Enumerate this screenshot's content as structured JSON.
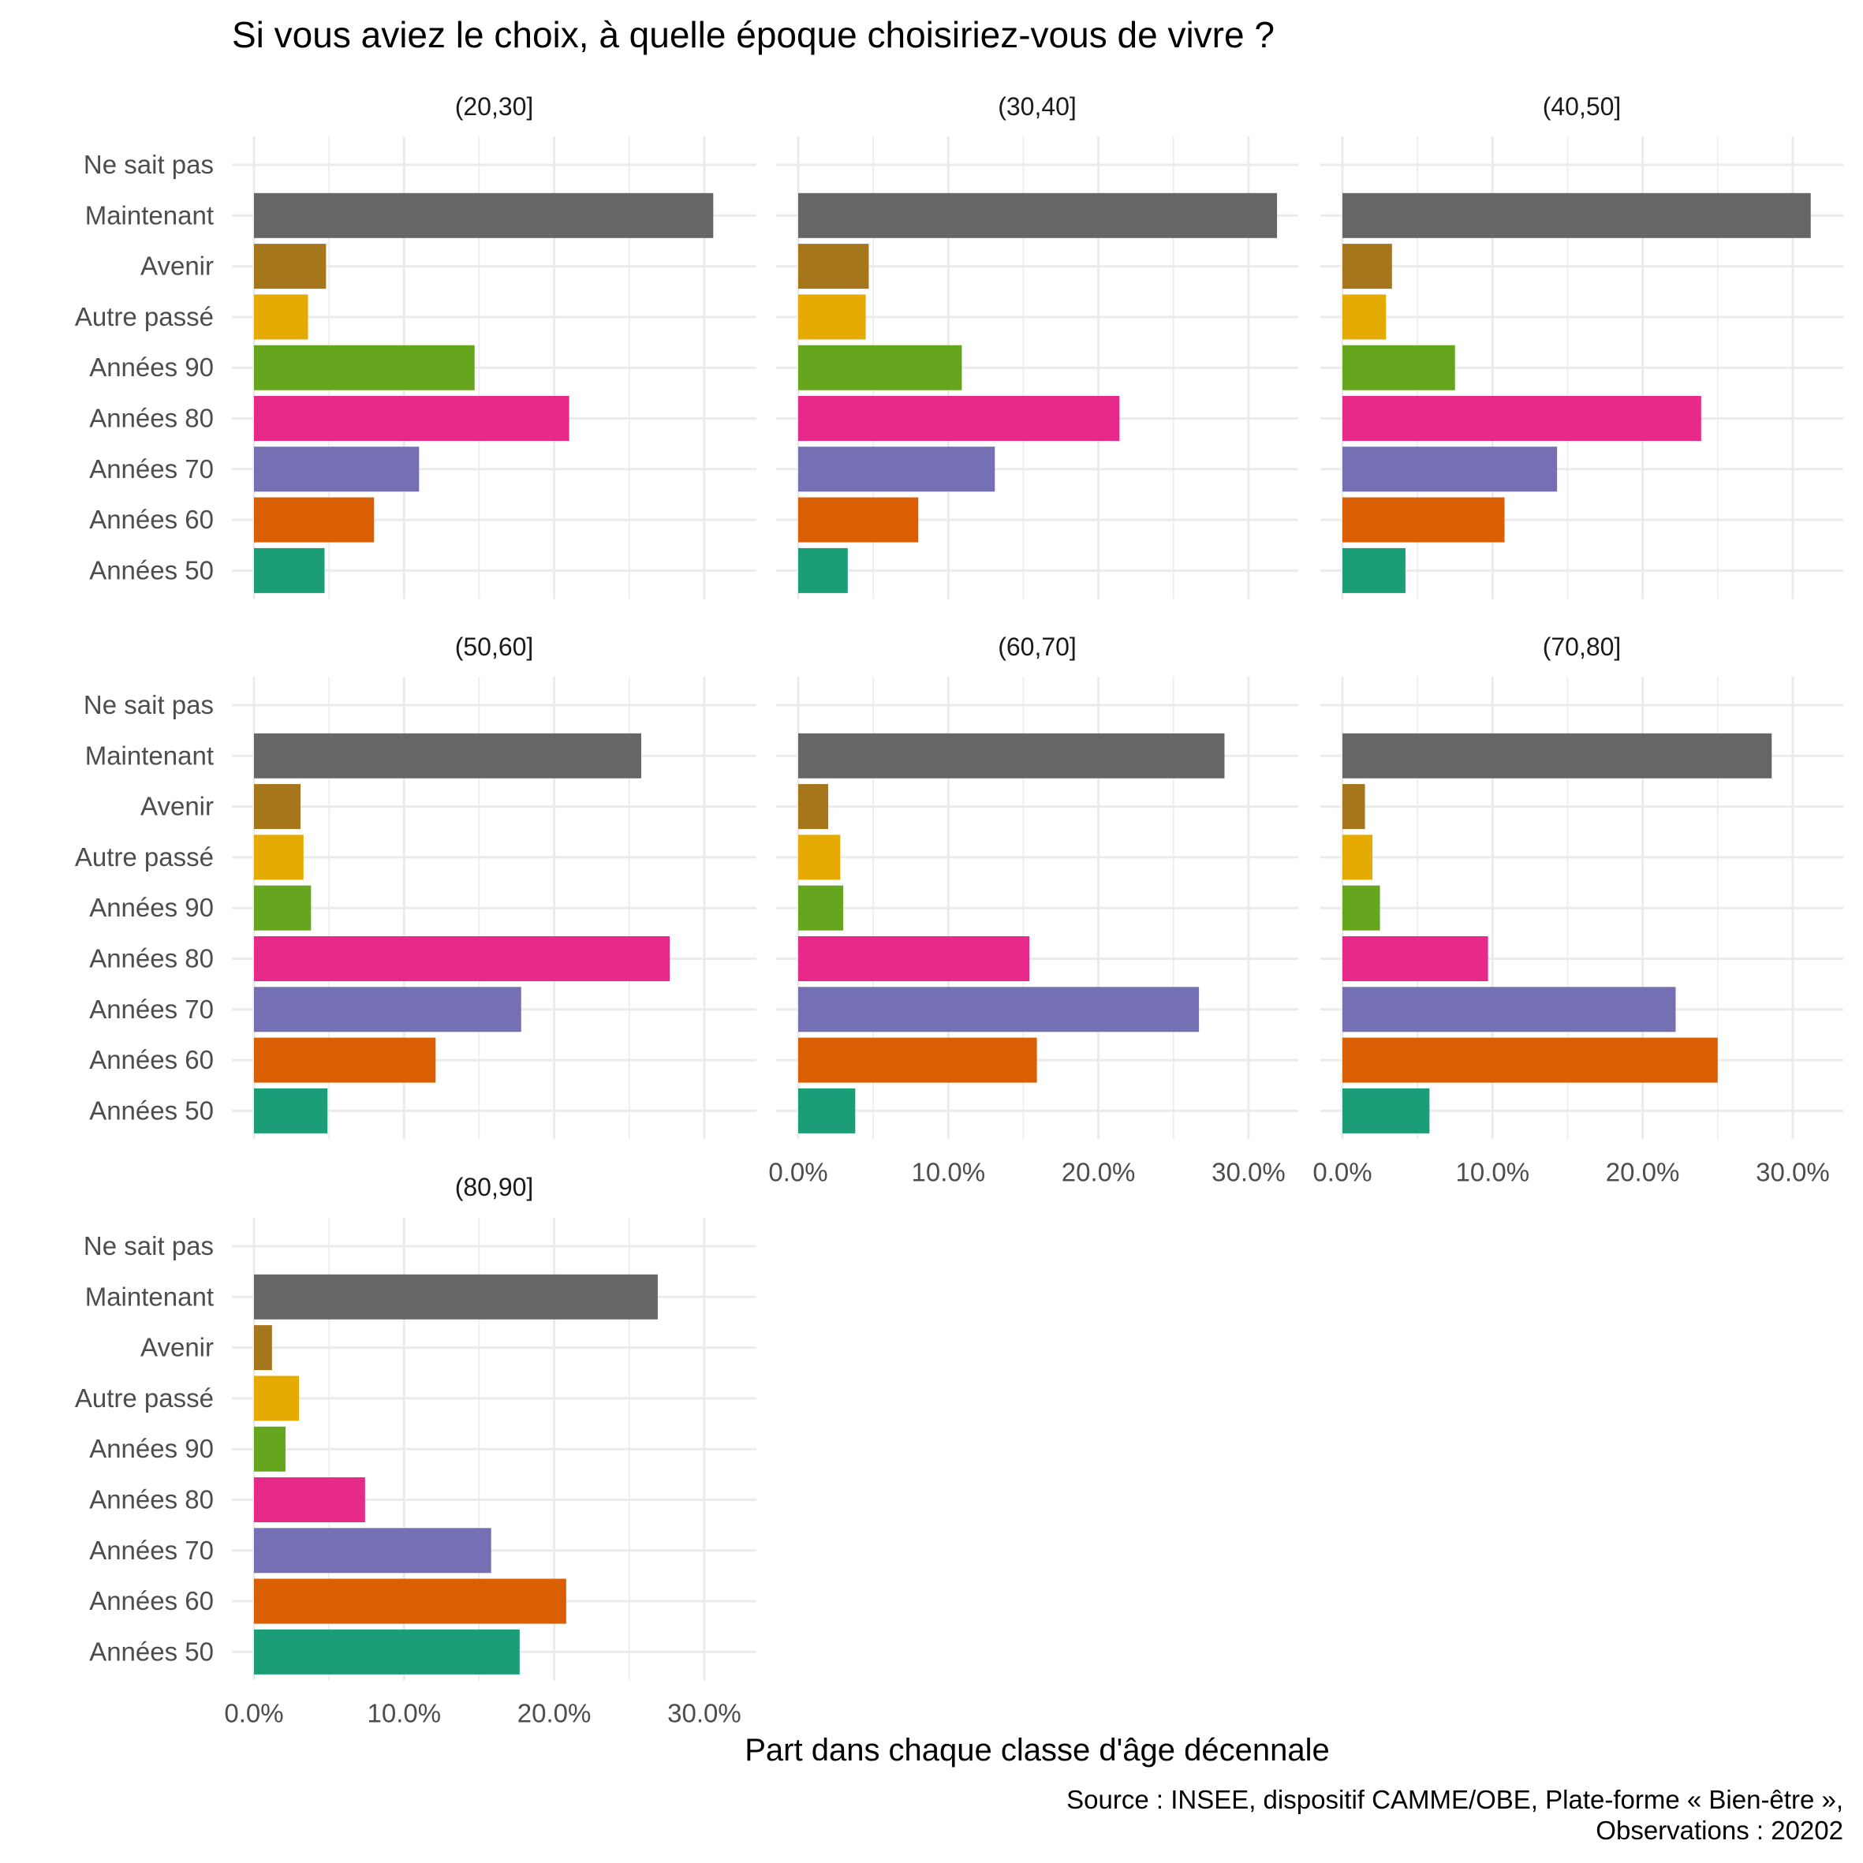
{
  "chart_data": {
    "type": "bar",
    "orientation": "horizontal",
    "faceted": true,
    "title": "Si vous aviez le choix, à quelle époque choisiriez-vous de vivre ?",
    "xlabel": "Part dans chaque classe d'âge décennale",
    "ylabel": "",
    "caption": [
      "Source : INSEE, dispositif CAMME/OBE, Plate-forme « Bien-être »,",
      "Observations : 20202"
    ],
    "xlim": [
      0,
      0.32
    ],
    "xticks": [
      0,
      0.1,
      0.2,
      0.3
    ],
    "xtick_labels": [
      "0.0%",
      "10.0%",
      "20.0%",
      "30.0%"
    ],
    "grid": true,
    "legend": "none",
    "categories": [
      "Ne sait pas",
      "Maintenant",
      "Avenir",
      "Autre passé",
      "Années 90",
      "Années 80",
      "Années 70",
      "Années 60",
      "Années 50"
    ],
    "colors": {
      "Ne sait pas": "#999999",
      "Maintenant": "#666666",
      "Avenir": "#A6761D",
      "Autre passé": "#E6AB02",
      "Années 90": "#66A61E",
      "Années 80": "#E7298A",
      "Années 70": "#7570B3",
      "Années 60": "#D95F02",
      "Années 50": "#1B9E77"
    },
    "facets": [
      {
        "name": "(20,30]",
        "values": [
          0.0,
          0.306,
          0.048,
          0.036,
          0.147,
          0.21,
          0.11,
          0.08,
          0.047
        ]
      },
      {
        "name": "(30,40]",
        "values": [
          0.0,
          0.319,
          0.047,
          0.045,
          0.109,
          0.214,
          0.131,
          0.08,
          0.033
        ]
      },
      {
        "name": "(40,50]",
        "values": [
          0.0,
          0.312,
          0.033,
          0.029,
          0.075,
          0.239,
          0.143,
          0.108,
          0.042
        ]
      },
      {
        "name": "(50,60]",
        "values": [
          0.0,
          0.258,
          0.031,
          0.033,
          0.038,
          0.277,
          0.178,
          0.121,
          0.049
        ]
      },
      {
        "name": "(60,70]",
        "values": [
          0.0,
          0.284,
          0.02,
          0.028,
          0.03,
          0.154,
          0.267,
          0.159,
          0.038
        ]
      },
      {
        "name": "(70,80]",
        "values": [
          0.0,
          0.286,
          0.015,
          0.02,
          0.025,
          0.097,
          0.222,
          0.25,
          0.058
        ]
      },
      {
        "name": "(80,90]",
        "values": [
          0.0,
          0.269,
          0.012,
          0.03,
          0.021,
          0.074,
          0.158,
          0.208,
          0.177
        ]
      }
    ]
  }
}
